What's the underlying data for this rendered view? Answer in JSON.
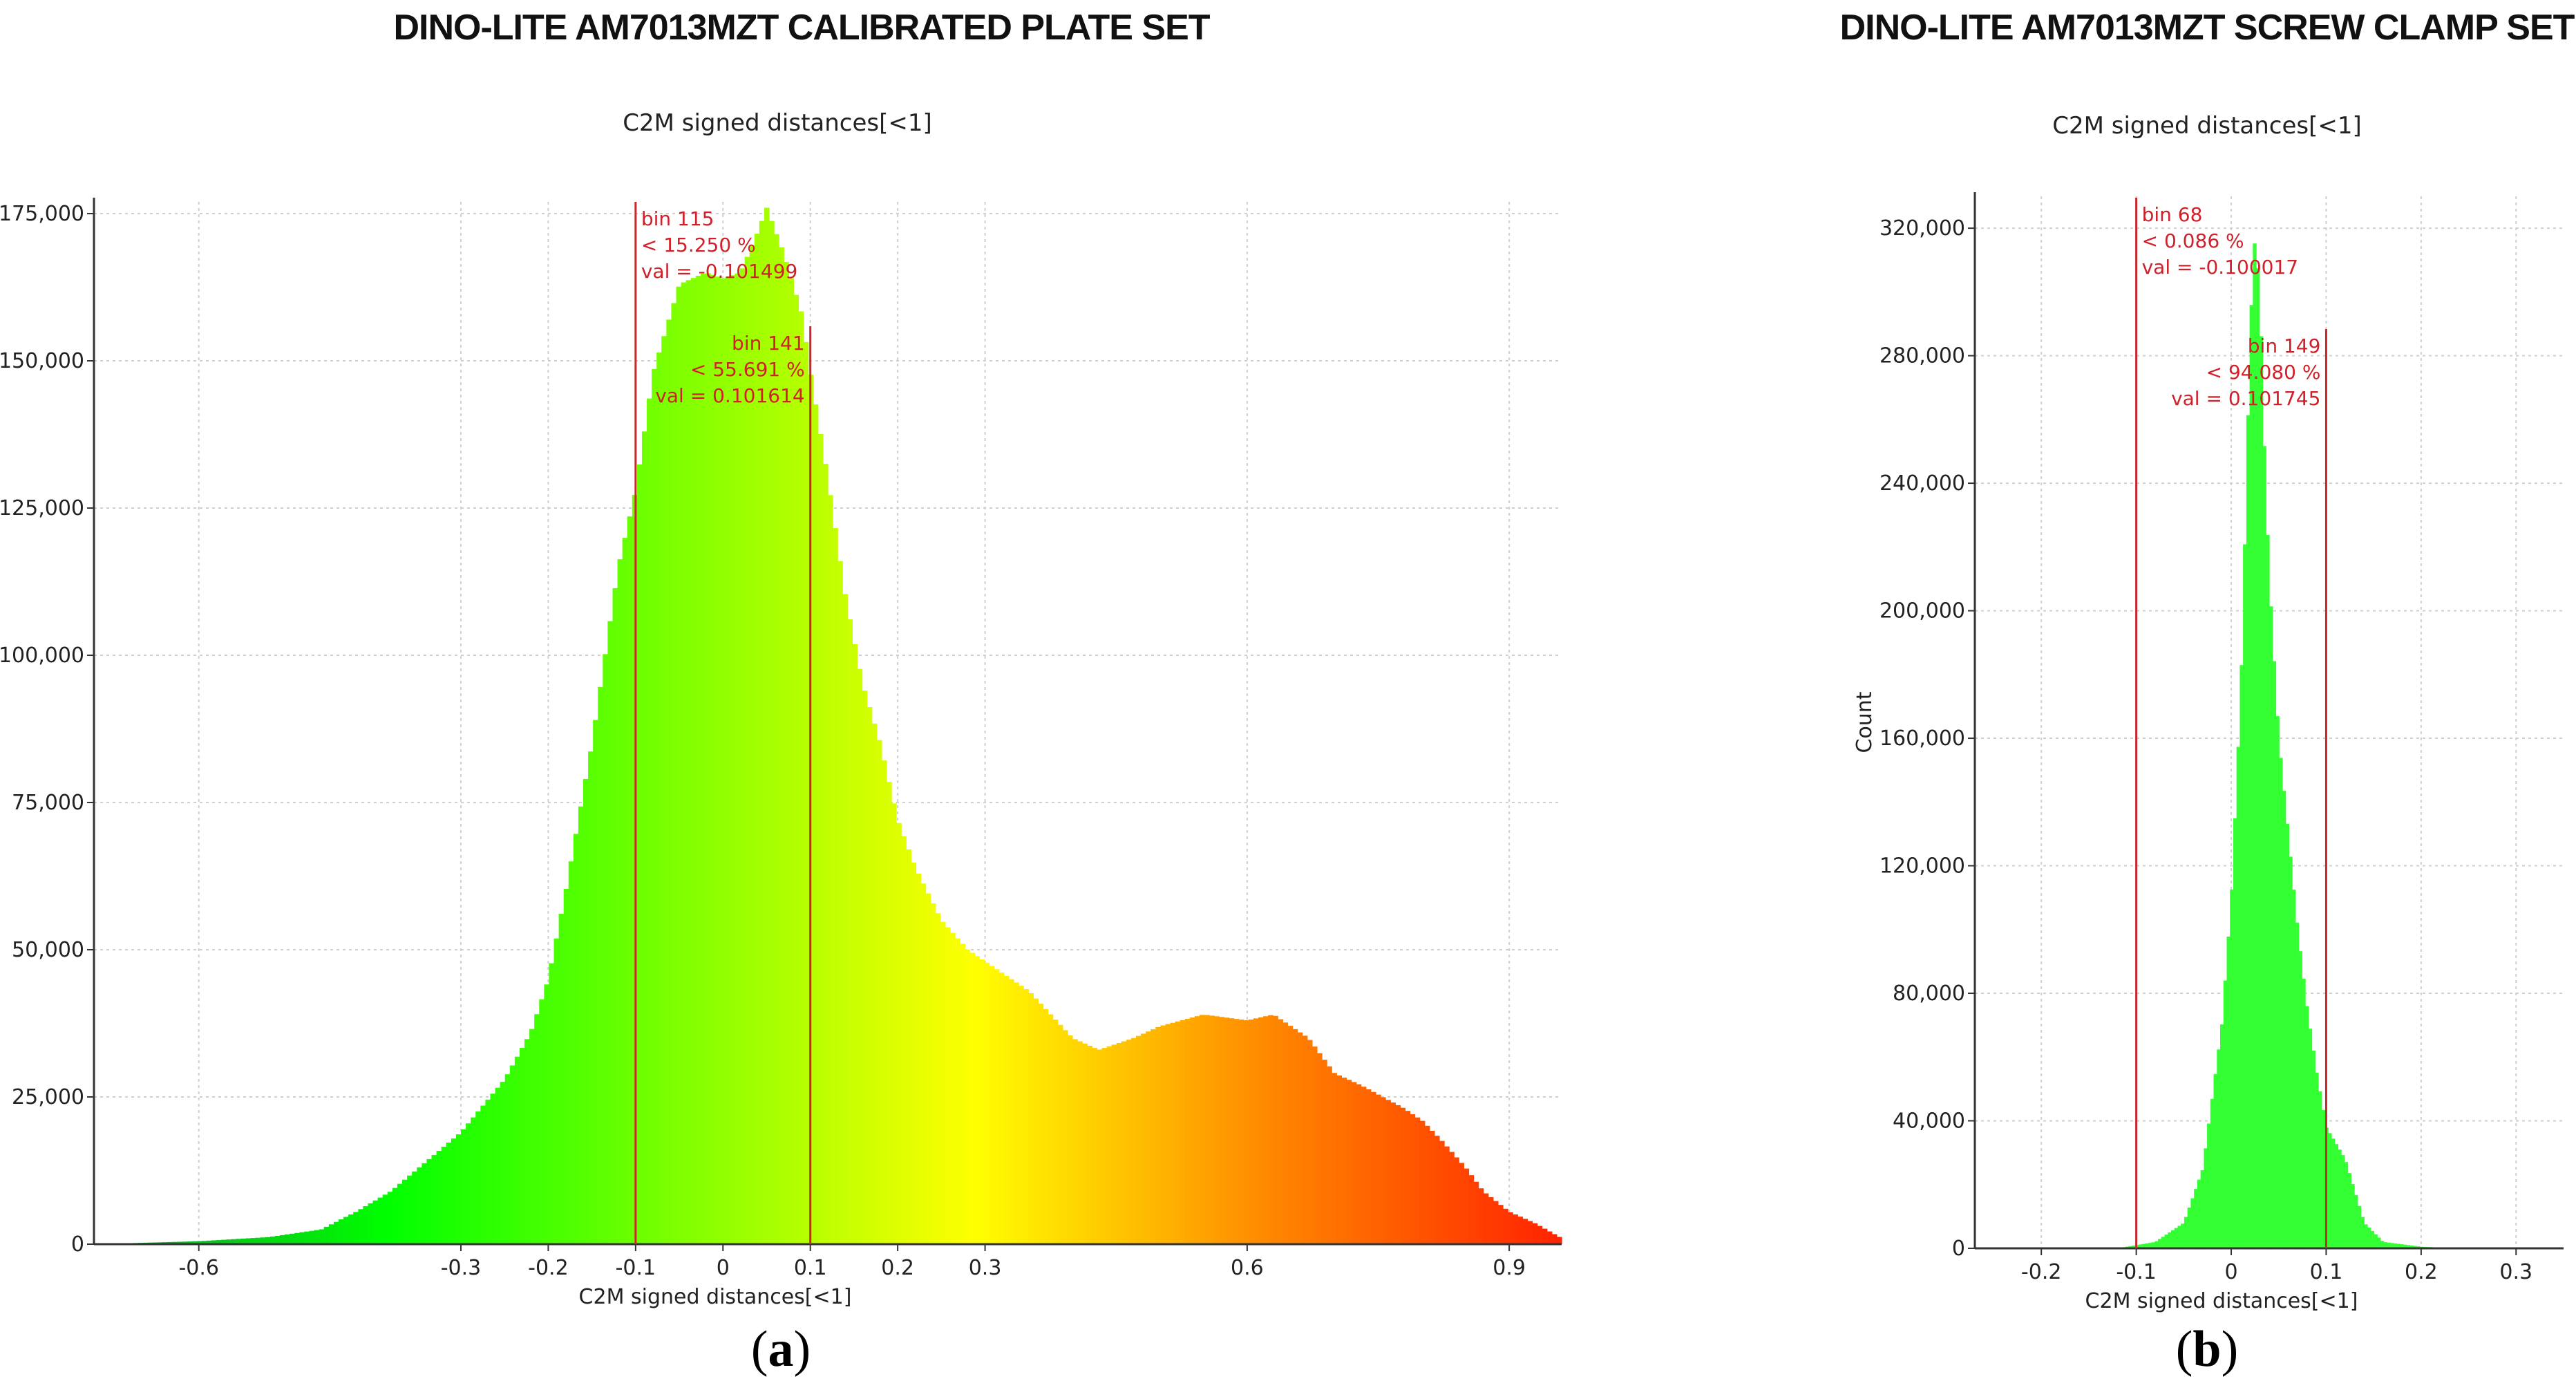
{
  "figure_labels": {
    "a": "a",
    "b": "b"
  },
  "chart_data": [
    {
      "type": "bar",
      "title": "DINO-LITE AM7013MZT CALIBRATED PLATE SET",
      "subtitle": "C2M signed distances[<1]",
      "xlabel": "C2M signed distances[<1]",
      "ylabel": "",
      "xlim": [
        -0.72,
        0.96
      ],
      "ylim": [
        0,
        177000
      ],
      "x_ticks": [
        -0.6,
        -0.3,
        -0.2,
        -0.1,
        0,
        0.1,
        0.2,
        0.3,
        0.6,
        0.9
      ],
      "x_tick_labels": [
        "-0.6",
        "-0.3",
        "-0.2",
        "-0.1",
        "0",
        "0.1",
        "0.2",
        "0.3",
        "0.6",
        "0.9"
      ],
      "y_ticks": [
        0,
        25000,
        50000,
        75000,
        100000,
        125000,
        150000,
        175000
      ],
      "y_tick_labels": [
        "0",
        "25,000",
        "50,000",
        "75,000",
        "100,000",
        "125,000",
        "150,000",
        "175,000"
      ],
      "grid": true,
      "color_scale": [
        "#0f9a2e",
        "#00ff00",
        "#80ff00",
        "#ffff00",
        "#ff8800",
        "#ff2200"
      ],
      "histogram_profile": {
        "x": [
          -0.72,
          -0.6,
          -0.52,
          -0.46,
          -0.42,
          -0.38,
          -0.34,
          -0.3,
          -0.25,
          -0.22,
          -0.2,
          -0.18,
          -0.15,
          -0.12,
          -0.1,
          -0.08,
          -0.05,
          -0.02,
          0.0,
          0.02,
          0.04,
          0.05,
          0.07,
          0.09,
          0.1,
          0.12,
          0.14,
          0.16,
          0.18,
          0.2,
          0.22,
          0.25,
          0.28,
          0.3,
          0.35,
          0.4,
          0.43,
          0.47,
          0.5,
          0.55,
          0.6,
          0.63,
          0.67,
          0.7,
          0.73,
          0.78,
          0.8,
          0.82,
          0.85,
          0.87,
          0.9,
          0.93,
          0.96
        ],
        "y": [
          0,
          500,
          1200,
          2500,
          5500,
          9000,
          14000,
          19000,
          28000,
          36000,
          45000,
          60000,
          85000,
          115000,
          128000,
          148000,
          163000,
          165000,
          164000,
          165000,
          172000,
          176000,
          168000,
          158000,
          148000,
          130000,
          110000,
          95000,
          85000,
          72000,
          64000,
          55000,
          50000,
          48000,
          43000,
          35000,
          33000,
          35000,
          37000,
          39000,
          38000,
          39000,
          35000,
          29000,
          27000,
          23000,
          21000,
          18000,
          13000,
          9000,
          5500,
          3500,
          1000
        ]
      },
      "markers": [
        {
          "x": -0.1,
          "lines": [
            "bin 115",
            "< 15.250 %",
            "val = -0.101499"
          ]
        },
        {
          "x": 0.1,
          "lines": [
            "bin 141",
            "< 55.691 %",
            "val = 0.101614"
          ]
        }
      ]
    },
    {
      "type": "bar",
      "title": "DINO-LITE AM7013MZT SCREW CLAMP  SET",
      "subtitle": "C2M signed distances[<1]",
      "xlabel": "C2M signed distances[<1]",
      "ylabel": "Count",
      "xlim": [
        -0.27,
        0.35
      ],
      "ylim": [
        0,
        330000
      ],
      "x_ticks": [
        -0.2,
        -0.1,
        0,
        0.1,
        0.2,
        0.3
      ],
      "x_tick_labels": [
        "-0.2",
        "-0.1",
        "0",
        "0.1",
        "0.2",
        "0.3"
      ],
      "y_ticks": [
        0,
        40000,
        80000,
        120000,
        160000,
        200000,
        240000,
        280000,
        320000
      ],
      "y_tick_labels": [
        "0",
        "40,000",
        "80,000",
        "120,000",
        "160,000",
        "200,000",
        "240,000",
        "280,000",
        "320,000"
      ],
      "grid": true,
      "color_scale": [
        "#33ff33"
      ],
      "histogram_profile": {
        "x": [
          -0.12,
          -0.08,
          -0.05,
          -0.03,
          -0.01,
          0.0,
          0.01,
          0.015,
          0.02,
          0.025,
          0.03,
          0.035,
          0.04,
          0.05,
          0.06,
          0.07,
          0.08,
          0.09,
          0.1,
          0.11,
          0.12,
          0.13,
          0.14,
          0.16,
          0.2,
          0.24
        ],
        "y": [
          0,
          2000,
          8000,
          25000,
          70000,
          110000,
          175000,
          230000,
          290000,
          318000,
          300000,
          250000,
          210000,
          160000,
          130000,
          100000,
          75000,
          55000,
          38000,
          33000,
          28000,
          18000,
          8000,
          2000,
          500,
          0
        ]
      },
      "markers": [
        {
          "x": -0.1,
          "lines": [
            "bin 68",
            "< 0.086 %",
            "val = -0.100017"
          ]
        },
        {
          "x": 0.1,
          "lines": [
            "bin 149",
            "< 94.080 %",
            "val = 0.101745"
          ]
        }
      ]
    }
  ]
}
